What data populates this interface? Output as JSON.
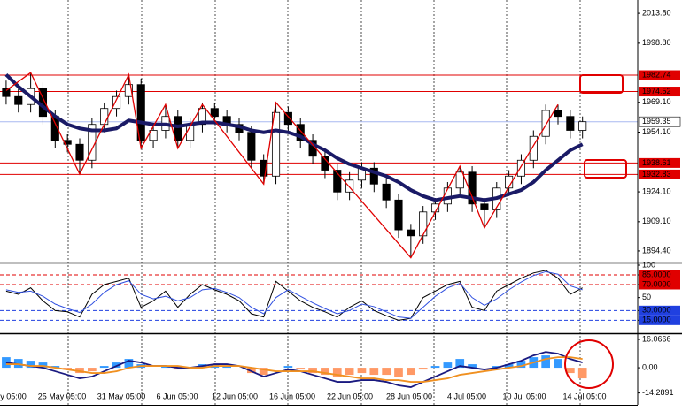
{
  "time_axis": [
    "y 05:00",
    "25 May 05:00",
    "31 May 05:00",
    "6 Jun 05:00",
    "12 Jun 05:00",
    "16 Jun 05:00",
    "22 Jun 05:00",
    "28 Jun 05:00",
    "4 Jul 05:00",
    "10 Jul 05:00",
    "14 Jul 05:00"
  ],
  "chart_data": [
    {
      "type": "candlestick",
      "up_color": "#ffffff",
      "down_color": "#000000",
      "edge_color": "#000000",
      "open": [
        1976,
        1972,
        1968,
        1976,
        1962,
        1950,
        1948,
        1940,
        1958,
        1966,
        1972,
        1978,
        1950,
        1955,
        1962,
        1950,
        1958,
        1966,
        1962,
        1958,
        1954,
        1940,
        1932,
        1964,
        1958,
        1950,
        1942,
        1935,
        1924,
        1930,
        1936,
        1928,
        1920,
        1905,
        1902,
        1914,
        1918,
        1926,
        1934,
        1918,
        1915,
        1926,
        1932,
        1940,
        1952,
        1965,
        1962,
        1955
      ],
      "high": [
        1980,
        1976,
        1984,
        1979,
        1965,
        1953,
        1951,
        1961,
        1969,
        1975,
        1983,
        1981,
        1958,
        1968,
        1965,
        1961,
        1969,
        1969,
        1965,
        1961,
        1957,
        1943,
        1969,
        1967,
        1961,
        1953,
        1945,
        1938,
        1934,
        1939,
        1939,
        1931,
        1923,
        1908,
        1917,
        1921,
        1929,
        1937,
        1937,
        1921,
        1929,
        1935,
        1943,
        1955,
        1968,
        1968,
        1965,
        1962
      ],
      "low": [
        1968,
        1964,
        1964,
        1958,
        1946,
        1944,
        1933,
        1936,
        1954,
        1962,
        1968,
        1946,
        1946,
        1951,
        1946,
        1946,
        1954,
        1958,
        1954,
        1950,
        1936,
        1928,
        1928,
        1954,
        1946,
        1938,
        1931,
        1920,
        1920,
        1926,
        1924,
        1916,
        1901,
        1891,
        1898,
        1910,
        1914,
        1922,
        1914,
        1906,
        1911,
        1922,
        1928,
        1936,
        1948,
        1958,
        1951,
        1951
      ],
      "close": [
        1972,
        1968,
        1976,
        1962,
        1950,
        1948,
        1940,
        1958,
        1966,
        1972,
        1978,
        1950,
        1955,
        1962,
        1950,
        1958,
        1966,
        1962,
        1958,
        1954,
        1940,
        1932,
        1964,
        1958,
        1950,
        1942,
        1935,
        1924,
        1930,
        1936,
        1928,
        1920,
        1905,
        1902,
        1914,
        1918,
        1926,
        1934,
        1918,
        1915,
        1926,
        1932,
        1940,
        1952,
        1965,
        1962,
        1955,
        1959.35
      ],
      "ma": {
        "color": "#1a1a66",
        "values": [
          1983,
          1977,
          1972,
          1967,
          1962,
          1958,
          1956,
          1955,
          1955,
          1956,
          1960,
          1959,
          1958,
          1958,
          1957,
          1958,
          1959,
          1959,
          1958,
          1957,
          1955,
          1954,
          1955,
          1954,
          1952,
          1948,
          1945,
          1941,
          1938,
          1936,
          1934,
          1932,
          1929,
          1925,
          1922,
          1920,
          1921,
          1922,
          1921,
          1920,
          1921,
          1923,
          1925,
          1929,
          1935,
          1940,
          1945,
          1948
        ]
      },
      "zigzag": {
        "color": "#e00000",
        "x": [
          0,
          2,
          6,
          10,
          11,
          13,
          14,
          16,
          21,
          22,
          33,
          37,
          39,
          45
        ],
        "values": [
          1975,
          1984,
          1933,
          1983,
          1946,
          1968,
          1946,
          1968,
          1928,
          1969,
          1891,
          1937,
          1906,
          1968
        ]
      },
      "levels": [
        {
          "value": 1982.74,
          "color": "#e00000"
        },
        {
          "value": 1974.52,
          "color": "#e00000"
        },
        {
          "value": 1959.35,
          "color": "#a8b8f0"
        },
        {
          "value": 1938.61,
          "color": "#e00000"
        },
        {
          "value": 1932.83,
          "color": "#e00000"
        }
      ],
      "xlim": [
        -0.5,
        51.5
      ],
      "ylim": [
        1888.6,
        2020.5
      ],
      "yticks": [
        {
          "value": 2013.8,
          "label": "2013.80"
        },
        {
          "value": 1998.8,
          "label": "1998.80"
        },
        {
          "value": 1969.1,
          "label": "1969.10"
        },
        {
          "value": 1954.1,
          "label": "1954.10"
        },
        {
          "value": 1924.1,
          "label": "1924.10"
        },
        {
          "value": 1909.1,
          "label": "1909.10"
        },
        {
          "value": 1894.4,
          "label": "1894.40"
        }
      ]
    },
    {
      "type": "line",
      "xlim": [
        -0.5,
        51.5
      ],
      "ylim": [
        -5,
        100
      ],
      "yticks": [
        100,
        {
          "value": 85,
          "label": "85.0000"
        },
        {
          "value": 70,
          "label": "70.0000"
        },
        50,
        {
          "value": 30,
          "label": "30.0000"
        },
        {
          "value": 15,
          "label": "15.0000"
        }
      ],
      "levels": [
        {
          "value": 85,
          "color": "#e00000"
        },
        {
          "value": 70,
          "color": "#e00000"
        },
        {
          "value": 30,
          "color": "#2040e0"
        },
        {
          "value": 15,
          "color": "#2040e0"
        }
      ],
      "series": [
        {
          "color": "#000000",
          "values": [
            60,
            55,
            65,
            45,
            30,
            28,
            20,
            55,
            70,
            75,
            80,
            35,
            45,
            60,
            35,
            55,
            70,
            62,
            55,
            45,
            25,
            20,
            75,
            60,
            45,
            35,
            28,
            20,
            35,
            45,
            30,
            22,
            15,
            18,
            50,
            60,
            70,
            75,
            35,
            30,
            60,
            70,
            80,
            88,
            92,
            80,
            55,
            65
          ]
        },
        {
          "color": "#3050e0",
          "values": [
            62,
            58,
            60,
            52,
            40,
            33,
            27,
            40,
            58,
            70,
            76,
            55,
            48,
            52,
            45,
            50,
            62,
            64,
            58,
            50,
            35,
            25,
            50,
            62,
            52,
            42,
            33,
            25,
            30,
            40,
            36,
            28,
            20,
            18,
            35,
            52,
            65,
            72,
            50,
            38,
            48,
            62,
            74,
            84,
            90,
            86,
            68,
            62
          ]
        }
      ]
    },
    {
      "type": "macd",
      "xlim": [
        -0.5,
        51.5
      ],
      "ylim": [
        -22,
        18.07
      ],
      "yticks": [
        16.0666,
        {
          "value": 0,
          "label": "0.00"
        },
        -14.2891
      ],
      "histogram": {
        "up_color": "#3399ff",
        "down_color": "#ff9966",
        "values": [
          6,
          5,
          4,
          3,
          1,
          -1,
          -3,
          -2,
          1,
          3,
          5,
          2,
          0,
          1,
          -1,
          0,
          2,
          2,
          1,
          0,
          -3,
          -4,
          0,
          1,
          -1,
          -3,
          -4,
          -5,
          -4,
          -3,
          -4,
          -4,
          -5,
          -4,
          -1,
          1,
          3,
          5,
          2,
          0,
          1,
          2,
          4,
          6,
          7,
          5,
          -3,
          -6
        ]
      },
      "series": [
        {
          "color": "#1a1a80",
          "values": [
            3,
            2,
            1,
            0,
            -2,
            -4,
            -6,
            -5,
            -2,
            1,
            4,
            3,
            1,
            1,
            0,
            0,
            1,
            2,
            2,
            1,
            -2,
            -5,
            -3,
            -1,
            -2,
            -4,
            -6,
            -8,
            -8,
            -7,
            -7,
            -8,
            -10,
            -11,
            -8,
            -5,
            -2,
            1,
            0,
            -1,
            0,
            2,
            4,
            7,
            9,
            8,
            5,
            3
          ]
        },
        {
          "color": "#f09020",
          "values": [
            2,
            2,
            1,
            1,
            0,
            -1,
            -2,
            -3,
            -3,
            -2,
            0,
            1,
            1,
            1,
            1,
            0,
            0,
            1,
            1,
            1,
            0,
            -1,
            -2,
            -2,
            -2,
            -2,
            -3,
            -4,
            -5,
            -6,
            -6,
            -7,
            -7,
            -8,
            -8,
            -7,
            -6,
            -4,
            -3,
            -2,
            -1,
            0,
            1,
            3,
            5,
            6,
            6,
            5
          ]
        }
      ]
    }
  ]
}
